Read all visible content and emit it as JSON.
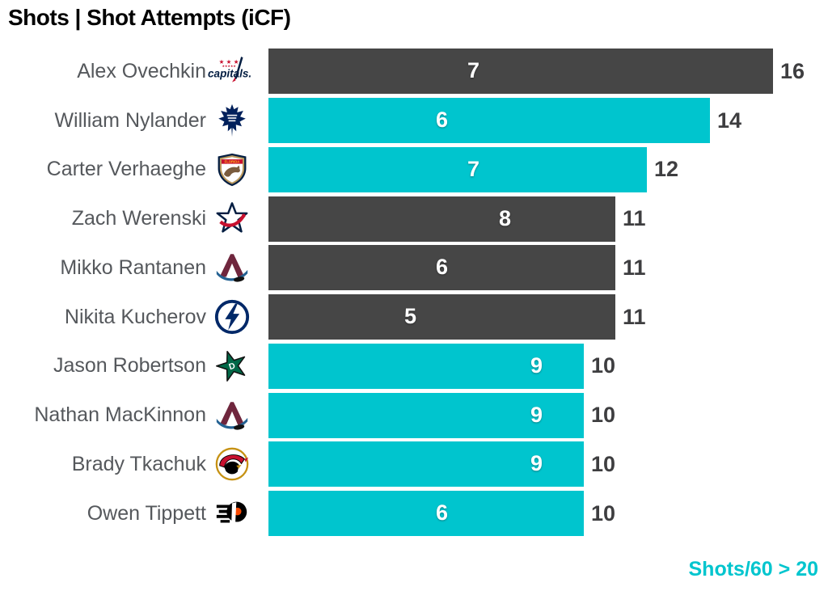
{
  "title": "Shots | Shot Attempts (iCF)",
  "legend": {
    "label": "Shots/60 > 20"
  },
  "colors": {
    "highlight": "#00C5CE",
    "default_bar": "#464646",
    "inner_label": "#FFFFFF",
    "value_label": "#3E3E40",
    "name_label": "#55585C",
    "title": "#000000"
  },
  "axis": {
    "max": 16
  },
  "players": [
    {
      "name": "Alex Ovechkin",
      "team": "capitals",
      "logo_icon": "capitals-logo",
      "shots": 7,
      "attempts": 16,
      "highlighted": false
    },
    {
      "name": "William Nylander",
      "team": "mapleleafs",
      "logo_icon": "mapleleafs-logo",
      "shots": 6,
      "attempts": 14,
      "highlighted": true
    },
    {
      "name": "Carter Verhaeghe",
      "team": "panthers",
      "logo_icon": "panthers-logo",
      "shots": 7,
      "attempts": 12,
      "highlighted": true
    },
    {
      "name": "Zach Werenski",
      "team": "bluejackets",
      "logo_icon": "bluejackets-logo",
      "shots": 8,
      "attempts": 11,
      "highlighted": false
    },
    {
      "name": "Mikko Rantanen",
      "team": "avalanche",
      "logo_icon": "avalanche-logo",
      "shots": 6,
      "attempts": 11,
      "highlighted": false
    },
    {
      "name": "Nikita Kucherov",
      "team": "lightning",
      "logo_icon": "lightning-logo",
      "shots": 5,
      "attempts": 11,
      "highlighted": false
    },
    {
      "name": "Jason Robertson",
      "team": "stars",
      "logo_icon": "stars-logo",
      "shots": 9,
      "attempts": 10,
      "highlighted": true
    },
    {
      "name": "Nathan MacKinnon",
      "team": "avalanche",
      "logo_icon": "avalanche-logo",
      "shots": 9,
      "attempts": 10,
      "highlighted": true
    },
    {
      "name": "Brady Tkachuk",
      "team": "senators",
      "logo_icon": "senators-logo",
      "shots": 9,
      "attempts": 10,
      "highlighted": true
    },
    {
      "name": "Owen Tippett",
      "team": "flyers",
      "logo_icon": "flyers-logo",
      "shots": 6,
      "attempts": 10,
      "highlighted": true
    }
  ],
  "chart_data": {
    "type": "bar",
    "orientation": "horizontal",
    "title": "Shots | Shot Attempts (iCF)",
    "categories": [
      "Alex Ovechkin",
      "William Nylander",
      "Carter Verhaeghe",
      "Zach Werenski",
      "Mikko Rantanen",
      "Nikita Kucherov",
      "Jason Robertson",
      "Nathan MacKinnon",
      "Brady Tkachuk",
      "Owen Tippett"
    ],
    "series": [
      {
        "name": "Shots",
        "values": [
          7,
          6,
          7,
          8,
          6,
          5,
          9,
          9,
          9,
          6
        ]
      },
      {
        "name": "Shot Attempts (iCF)",
        "values": [
          16,
          14,
          12,
          11,
          11,
          11,
          10,
          10,
          10,
          10
        ]
      }
    ],
    "xlim": [
      0,
      16
    ],
    "grid": false,
    "annotation": "Shots/60 > 20",
    "highlight_rule": "teal bar when Shots/60 > 20",
    "highlighted_categories": [
      "William Nylander",
      "Carter Verhaeghe",
      "Jason Robertson",
      "Nathan MacKinnon",
      "Brady Tkachuk",
      "Owen Tippett"
    ],
    "legend_position": "bottom-right"
  }
}
